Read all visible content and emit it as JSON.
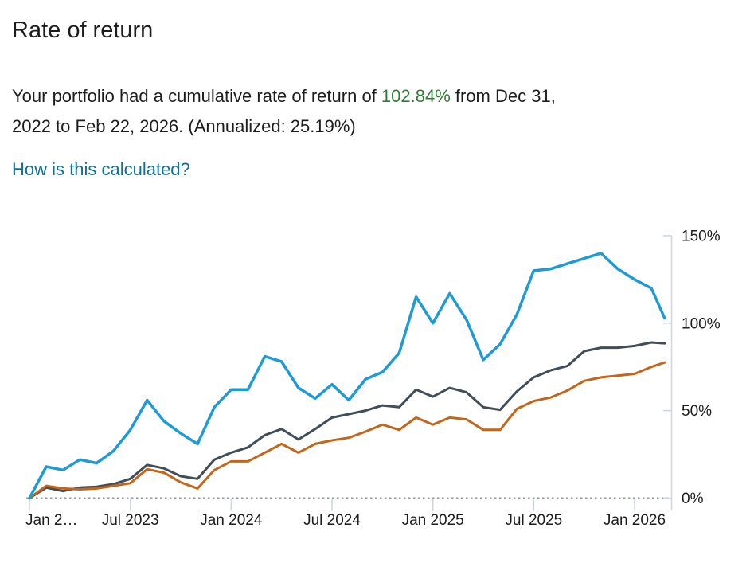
{
  "page": {
    "title": "Rate of return",
    "summary": {
      "text_before_value": "Your portfolio had a cumulative rate of return of ",
      "highlight_value": "102.84%",
      "text_after_value_line1": " from Dec 31,",
      "text_line2": "2022 to Feb 22, 2026. (Annualized: 25.19%)"
    },
    "link_label": "How is this calculated?"
  },
  "colors": {
    "highlight_green": "#2e7d32",
    "link_blue": "#0f7196",
    "text": "#1d1d1d",
    "axis_line": "#c9d3ea",
    "zero_line_dotted": "#999999",
    "series_portfolio_blue": "#1e9ad5",
    "series_dark_gray": "#414e58",
    "series_orange": "#c2661c"
  },
  "chart_data": {
    "type": "line",
    "title": "",
    "xlabel": "",
    "ylabel": "",
    "ylim": [
      0,
      150
    ],
    "grid": "zero-line-only",
    "legend": "none",
    "y_axis_position": "right",
    "y_ticks": [
      0,
      50,
      100,
      150
    ],
    "y_tick_labels": [
      "0%",
      "50%",
      "100%",
      "150%"
    ],
    "x_tick_labels": [
      "Jan 2…",
      "Jul 2023",
      "Jan 2024",
      "Jul 2024",
      "Jan 2025",
      "Jul 2025",
      "Jan 2026"
    ],
    "x_tick_month_index": [
      0,
      6,
      12,
      18,
      24,
      30,
      36
    ],
    "x_dates": [
      "Dec 31, 2022",
      "Jan 2023",
      "Feb 2023",
      "Mar 2023",
      "Apr 2023",
      "May 2023",
      "Jun 2023",
      "Jul 2023",
      "Aug 2023",
      "Sep 2023",
      "Oct 2023",
      "Nov 2023",
      "Dec 2023",
      "Jan 2024",
      "Feb 2024",
      "Mar 2024",
      "Apr 2024",
      "May 2024",
      "Jun 2024",
      "Jul 2024",
      "Aug 2024",
      "Sep 2024",
      "Oct 2024",
      "Nov 2024",
      "Dec 2024",
      "Jan 2025",
      "Feb 2025",
      "Mar 2025",
      "Apr 2025",
      "May 2025",
      "Jun 2025",
      "Jul 2025",
      "Aug 2025",
      "Sep 2025",
      "Oct 2025",
      "Nov 2025",
      "Dec 2025",
      "Jan 2026",
      "Feb 22, 2026"
    ],
    "x_month_offset": [
      0,
      1,
      2,
      3,
      4,
      5,
      6,
      7,
      8,
      9,
      10,
      11,
      12,
      13,
      14,
      15,
      16,
      17,
      18,
      19,
      20,
      21,
      22,
      23,
      24,
      25,
      26,
      27,
      28,
      29,
      30,
      31,
      32,
      33,
      34,
      35,
      36,
      37,
      37.79
    ],
    "series": [
      {
        "name": "dark-gray-benchmark",
        "color_key": "series_dark_gray",
        "values": [
          0,
          6,
          4,
          6,
          6.5,
          8,
          11,
          19,
          17,
          12.5,
          11,
          22,
          26,
          29,
          36,
          39.5,
          33.5,
          39.5,
          46,
          48,
          50,
          53,
          52,
          62,
          58,
          63,
          60.5,
          52,
          50.5,
          61,
          69,
          73,
          75.5,
          84,
          86,
          86,
          87,
          89,
          88.5
        ]
      },
      {
        "name": "orange-benchmark",
        "color_key": "series_orange",
        "values": [
          0,
          7,
          5.5,
          5,
          5.5,
          7,
          8.5,
          16.5,
          14.5,
          9,
          5.5,
          16,
          21,
          21,
          26,
          31,
          26,
          31,
          33,
          34.5,
          38,
          42,
          39,
          46,
          42,
          46,
          45,
          39,
          39,
          51,
          55.5,
          57.5,
          61.5,
          67,
          69,
          70,
          71,
          75,
          77.5
        ]
      },
      {
        "name": "portfolio",
        "color_key": "series_portfolio_blue",
        "values": [
          0,
          18,
          16,
          22,
          20,
          27,
          39,
          56,
          44,
          37,
          31,
          52,
          62,
          62,
          81,
          78,
          63,
          57,
          65,
          56,
          68,
          72,
          83,
          115,
          100,
          117,
          102,
          79,
          88,
          105,
          130,
          131,
          134,
          137,
          140,
          131,
          125,
          120,
          102.84
        ]
      }
    ]
  }
}
